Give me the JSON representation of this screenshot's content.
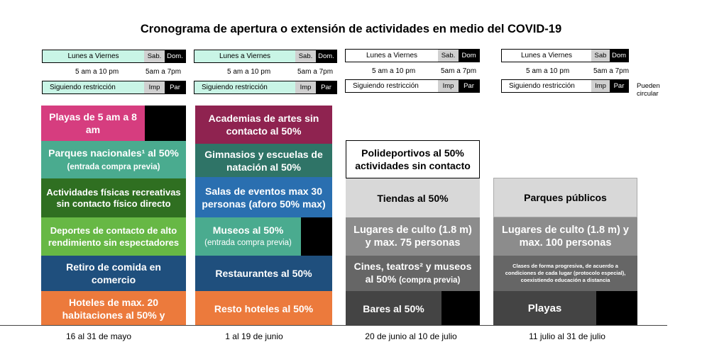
{
  "title": "Cronograma de apertura o extensión de actividades en medio del COVID-19",
  "colors": {
    "mint": "#c9f5e6",
    "pink": "#d63d7f",
    "teal": "#4aab8f",
    "darkgreen": "#2f6f21",
    "green": "#67b845",
    "navy": "#1f4f7d",
    "orange": "#ec7a3c",
    "maroon": "#8f2350",
    "darkteal": "#2f7467",
    "blue": "#2a6fb0",
    "lightgray": "#d8d8d8",
    "gray": "#8c8c8c",
    "darkgray": "#666666",
    "charcoal": "#444444"
  },
  "columns": [
    {
      "period": "16 al 31 de mayo",
      "header": {
        "weekdays": "Lunes a Viernes",
        "sat": "Sab.",
        "sun": "Dom.",
        "weekday_hours": "5 am a 10 pm",
        "weekend_hours": "5am a 7pm",
        "restriction": "Siguiendo restricción",
        "odd": "Imp",
        "even": "Par"
      },
      "boxes": [
        {
          "text": "Playas de 5 am a 8 am"
        },
        {
          "text": "Parques nacionales¹ al 50%",
          "small": "(entrada compra previa)"
        },
        {
          "text": "Actividades físicas recreativas sin contacto físico directo"
        },
        {
          "text": "Deportes de contacto de alto rendimiento sin espectadores"
        },
        {
          "text": "Retiro de comida en comercio"
        },
        {
          "text": "Hoteles de max. 20 habitaciones al 50% y"
        }
      ]
    },
    {
      "period": "1 al 19 de junio",
      "header": {
        "weekdays": "Lunes a Viernes",
        "sat": "Sab.",
        "sun": "Dom.",
        "weekday_hours": "5 am a 10 pm",
        "weekend_hours": "5am a 7pm",
        "restriction": "Siguiendo restricción",
        "odd": "Imp",
        "even": "Par"
      },
      "boxes": [
        {
          "text": "Academias de artes sin contacto al 50%"
        },
        {
          "text": "Gimnasios y escuelas de natación al 50%"
        },
        {
          "text": "Salas de eventos max 30 personas (aforo 50% max)"
        },
        {
          "text": "Museos al 50%",
          "small": "(entrada compra previa)"
        },
        {
          "text": "Restaurantes al 50%"
        },
        {
          "text": "Resto hoteles al 50%"
        }
      ]
    },
    {
      "period": "20 de junio al 10 de julio",
      "header": {
        "weekdays": "Lunes a Viernes",
        "sat": "Sab.",
        "sun": "Dom",
        "weekday_hours": "5 am a 10 pm",
        "weekend_hours": "5am a 7pm",
        "restriction": "Siguiendo restricción",
        "odd": "Imp",
        "even": "Par"
      },
      "boxes": [
        {
          "text": "Polideportivos al 50% actividades sin contacto"
        },
        {
          "text": "Tiendas al 50%"
        },
        {
          "text": "Lugares de culto (1.8 m) y max. 75 personas"
        },
        {
          "text": "Cines, teatros² y museos al 50%",
          "small": "(compra previa)"
        },
        {
          "text": "Bares al 50%"
        }
      ]
    },
    {
      "period": "11 julio al 31 de julio",
      "header": {
        "weekdays": "Lunes a Viernes",
        "sat": "Sab",
        "sun": "Dom",
        "weekday_hours": "5 am a 10 pm",
        "weekend_hours": "5am a 7pm",
        "restriction": "Siguiendo restricción",
        "odd": "Imp",
        "even": "Par",
        "note": "Pueden circular"
      },
      "boxes": [
        {
          "text": "Parques públicos"
        },
        {
          "text": "Lugares de culto (1.8 m) y max. 100 personas"
        },
        {
          "text": "Clases de forma progresiva, de acuerdo a condiciones de cada lugar (protocolo especial), coexistiendo educación a distancia"
        },
        {
          "text": "Playas"
        }
      ]
    }
  ]
}
